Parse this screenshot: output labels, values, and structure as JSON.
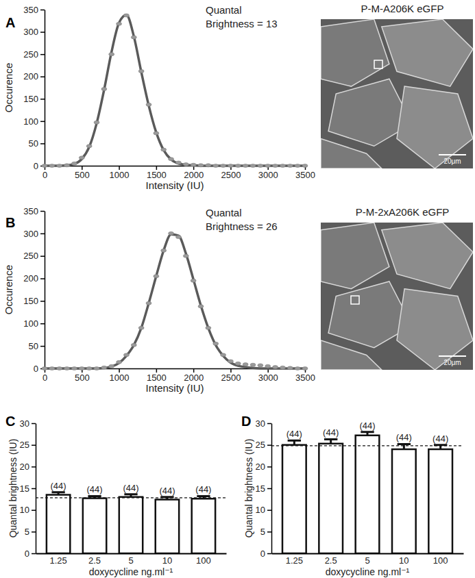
{
  "chart_data": [
    {
      "type": "scatter",
      "panel": "A",
      "x": [
        0,
        100,
        200,
        300,
        400,
        500,
        600,
        700,
        800,
        900,
        1000,
        1100,
        1200,
        1300,
        1400,
        1500,
        1600,
        1700,
        1800,
        1900,
        2000,
        2100,
        2200,
        2300,
        2400,
        2500,
        2600,
        2700,
        2800,
        2900,
        3000,
        3100,
        3200,
        3300,
        3400,
        3500
      ],
      "series": [
        {
          "type": "scatter",
          "marker": "circle",
          "color": "#9a9a9a",
          "values": [
            0,
            0,
            0,
            1,
            5,
            18,
            44,
            97,
            172,
            250,
            318,
            337,
            288,
            212,
            137,
            73,
            36,
            15,
            7,
            3,
            2,
            1,
            1,
            0,
            0,
            0,
            0,
            0,
            0,
            0,
            0,
            0,
            0,
            0,
            0,
            0
          ]
        },
        {
          "type": "line",
          "color": "#5a5a5a",
          "values": [
            0,
            0,
            0,
            1,
            4,
            15,
            42,
            95,
            170,
            255,
            320,
            338,
            290,
            210,
            135,
            75,
            35,
            14,
            5,
            2,
            1,
            0,
            0,
            0,
            0,
            0,
            0,
            0,
            0,
            0,
            0,
            0,
            0,
            0,
            0,
            0
          ]
        }
      ],
      "xlabel": "Intensity (IU)",
      "ylabel": "Occurence",
      "annotations": [
        "Quantal",
        "Brightness = 13"
      ],
      "xlim": [
        0,
        3500
      ],
      "xticks": [
        0,
        500,
        1000,
        1500,
        2000,
        2500,
        3000,
        3500
      ],
      "ylim": [
        0,
        350
      ],
      "yticks": [
        0,
        50,
        100,
        150,
        200,
        250,
        300,
        350
      ],
      "image": {
        "title": "P-M-A206K eGFP",
        "scale_bar": "20μm"
      }
    },
    {
      "type": "scatter",
      "panel": "B",
      "x": [
        0,
        100,
        200,
        300,
        400,
        500,
        600,
        700,
        800,
        900,
        1000,
        1100,
        1200,
        1300,
        1400,
        1500,
        1600,
        1700,
        1800,
        1900,
        2000,
        2100,
        2200,
        2300,
        2400,
        2500,
        2600,
        2700,
        2800,
        2900,
        3000,
        3100,
        3200,
        3300,
        3400,
        3500
      ],
      "series": [
        {
          "type": "scatter",
          "marker": "circle",
          "color": "#9a9a9a",
          "values": [
            0,
            0,
            0,
            0,
            0,
            0,
            0,
            0,
            2,
            5,
            14,
            30,
            52,
            90,
            145,
            205,
            262,
            300,
            292,
            250,
            195,
            138,
            90,
            55,
            30,
            16,
            11,
            9,
            8,
            7,
            5,
            3,
            2,
            1,
            0,
            0
          ]
        },
        {
          "type": "line",
          "color": "#5a5a5a",
          "values": [
            0,
            0,
            0,
            0,
            0,
            0,
            0,
            0,
            1,
            4,
            12,
            28,
            52,
            90,
            145,
            205,
            262,
            298,
            295,
            255,
            198,
            140,
            90,
            52,
            28,
            13,
            6,
            3,
            1,
            0,
            0,
            0,
            0,
            0,
            0,
            0
          ]
        }
      ],
      "xlabel": "Intensity (IU)",
      "ylabel": "Occurence",
      "annotations": [
        "Quantal",
        "Brightness = 26"
      ],
      "xlim": [
        0,
        3500
      ],
      "xticks": [
        0,
        500,
        1000,
        1500,
        2000,
        2500,
        3000,
        3500
      ],
      "ylim": [
        0,
        350
      ],
      "yticks": [
        0,
        50,
        100,
        150,
        200,
        250,
        300,
        350
      ],
      "image": {
        "title": "P-M-2xA206K eGFP",
        "scale_bar": "20μm"
      }
    },
    {
      "type": "bar",
      "panel": "C",
      "categories": [
        "1.25",
        "2.5",
        "5",
        "10",
        "100"
      ],
      "values": [
        13.5,
        12.7,
        13.0,
        12.4,
        12.6
      ],
      "errors": [
        0.6,
        0.5,
        0.6,
        0.6,
        0.6
      ],
      "n_labels": [
        "(44)",
        "(44)",
        "(44)",
        "(44)",
        "(44)"
      ],
      "reference_line": 12.8,
      "color": "#ffffff",
      "xlabel": "doxycycline ng.ml⁻¹",
      "ylabel": "Quantal brightness (IU)",
      "ylim": [
        0,
        30
      ],
      "yticks": [
        0,
        5,
        10,
        15,
        20,
        25,
        30
      ]
    },
    {
      "type": "bar",
      "panel": "D",
      "categories": [
        "1.25",
        "2.5",
        "5",
        "10",
        "100"
      ],
      "values": [
        25.0,
        25.3,
        27.2,
        24.0,
        24.0
      ],
      "errors": [
        1.0,
        1.0,
        0.8,
        1.2,
        1.0
      ],
      "n_labels": [
        "(44)",
        "(44)",
        "(44)",
        "(44)",
        "(44)"
      ],
      "reference_line": 24.8,
      "color": "#ffffff",
      "xlabel": "doxycycline ng.ml⁻¹",
      "ylabel": "Quantal brightness (IU)",
      "ylim": [
        0,
        30
      ],
      "yticks": [
        0,
        5,
        10,
        15,
        20,
        25,
        30
      ]
    }
  ]
}
